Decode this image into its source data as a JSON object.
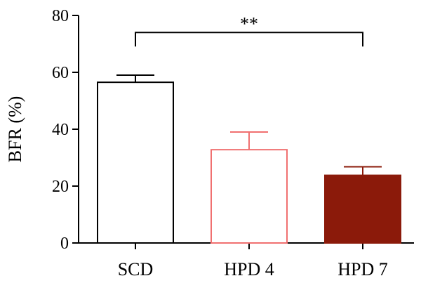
{
  "chart_data": {
    "type": "bar",
    "title": "",
    "xlabel": "",
    "ylabel": "BFR (%)",
    "ylim": [
      0,
      80
    ],
    "yticks": [
      0,
      20,
      40,
      60,
      80
    ],
    "categories": [
      "SCD",
      "HPD 4",
      "HPD 7"
    ],
    "values": [
      56.5,
      32.8,
      23.8
    ],
    "errors": [
      2.5,
      6.2,
      3.0
    ],
    "bar_fill": [
      "#ffffff",
      "#ffffff",
      "#8b1a0a"
    ],
    "bar_stroke": [
      "#000000",
      "#f07070",
      "#8b1a0a"
    ],
    "error_color": [
      "#000000",
      "#f07070",
      "#8b1a0a"
    ],
    "significance": {
      "from": "SCD",
      "to": "HPD 7",
      "label": "**",
      "y": 74
    }
  }
}
